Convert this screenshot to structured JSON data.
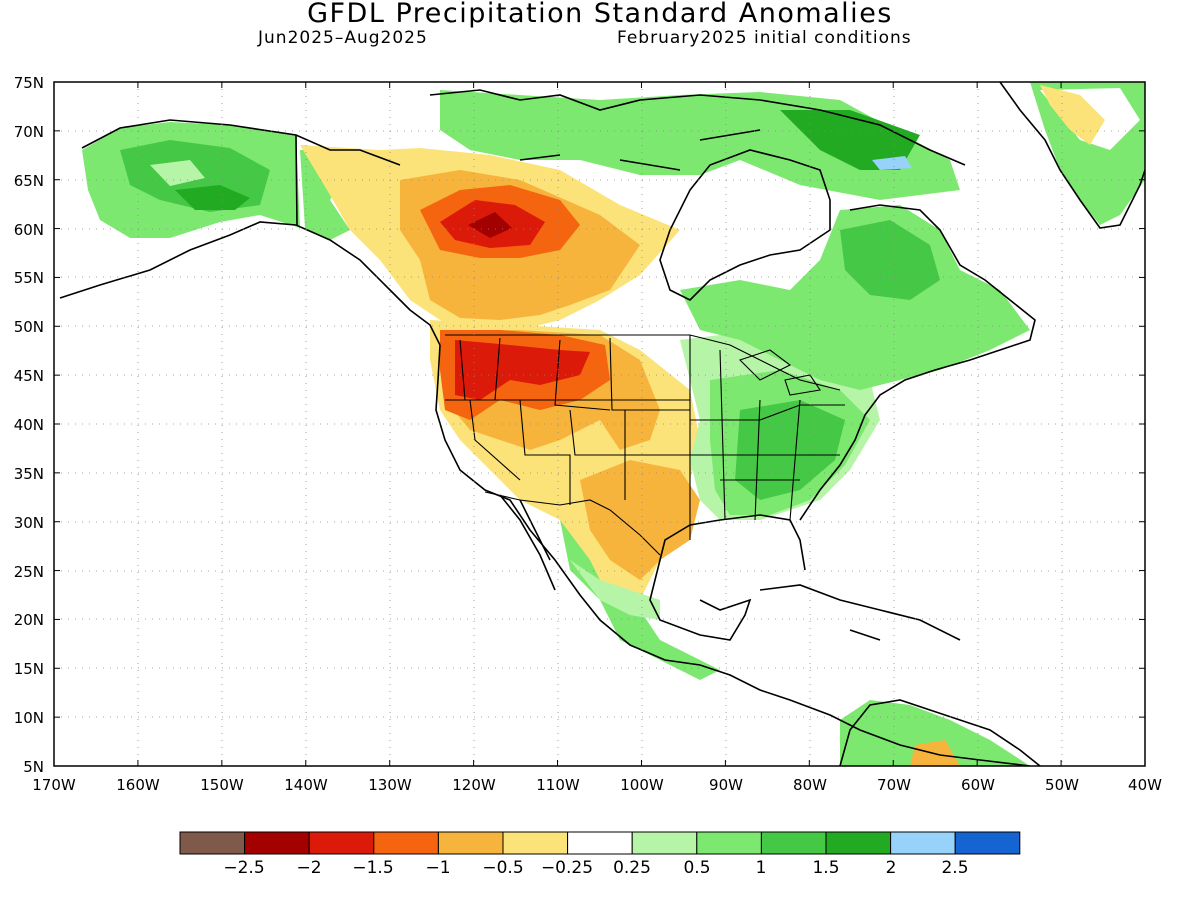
{
  "map": {
    "title": "GFDL Precipitation Standard Anomalies",
    "subtitle_left": "Jun2025–Aug2025",
    "subtitle_right": "February2025 initial conditions",
    "region": "North America",
    "lon_range": [
      -170,
      -40
    ],
    "lat_range": [
      5,
      75
    ],
    "lat_ticks": [
      "75N",
      "70N",
      "65N",
      "60N",
      "55N",
      "50N",
      "45N",
      "40N",
      "35N",
      "30N",
      "25N",
      "20N",
      "15N",
      "10N",
      "5N"
    ],
    "lon_ticks": [
      "170W",
      "160W",
      "150W",
      "140W",
      "130W",
      "120W",
      "110W",
      "100W",
      "90W",
      "80W",
      "70W",
      "60W",
      "50W",
      "40W"
    ]
  },
  "colorbar": {
    "labels": [
      "−2.5",
      "−2",
      "−1.5",
      "−1",
      "−0.5",
      "−0.25",
      "0.25",
      "0.5",
      "1",
      "1.5",
      "2",
      "2.5"
    ],
    "colors": [
      "#7f5a4a",
      "#a30000",
      "#db1a0a",
      "#f5640f",
      "#f7b43c",
      "#fbe37a",
      "#ffffff",
      "#b6f5a8",
      "#7de870",
      "#45c845",
      "#23aa23",
      "#96d2fa",
      "#1464d2"
    ]
  },
  "regions": [
    {
      "name": "dry-canada-northwest",
      "category": "-2"
    },
    {
      "name": "dry-us-northwest",
      "category": "-1.5"
    },
    {
      "name": "dry-southern-plains",
      "category": "-0.5"
    },
    {
      "name": "wet-eastern-us",
      "category": "1"
    },
    {
      "name": "wet-alaska",
      "category": "1"
    },
    {
      "name": "wet-eastern-canada",
      "category": "1"
    },
    {
      "name": "wet-mexico",
      "category": "0.5"
    },
    {
      "name": "wet-greenland",
      "category": "1"
    }
  ]
}
